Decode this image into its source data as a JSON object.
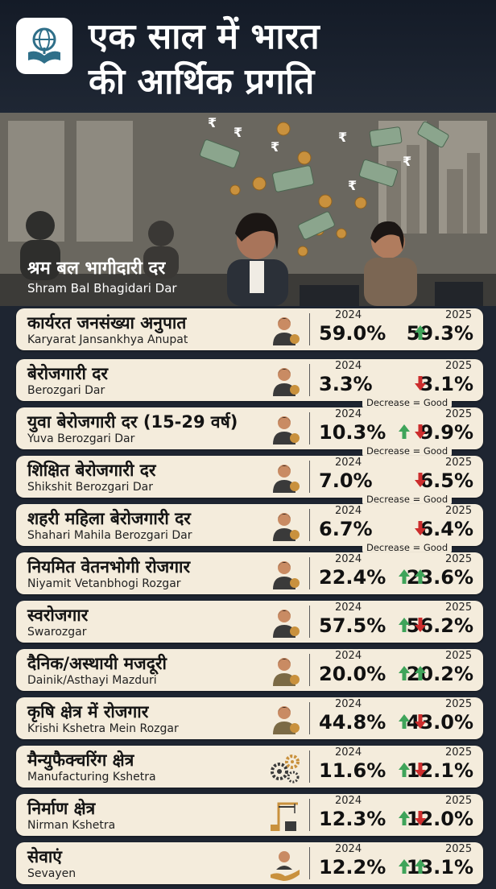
{
  "title": {
    "line1": "एक साल में भारत",
    "line2": "की आर्थिक प्रगति"
  },
  "intro": {
    "hi": "श्रम बल भागीदारी दर",
    "en": "Shram Bal Bhagidari Dar"
  },
  "year_labels": {
    "from": "2024",
    "to": "2025"
  },
  "decrease_note": "Decrease = Good",
  "colors": {
    "up": "#3fa45a",
    "down": "#cc2d2d",
    "card": "#f4ecdc",
    "background": "#1e2531"
  },
  "rows": [
    {
      "hi": "कार्यरत जनसंख्या अनुपात",
      "en": "Karyarat Jansankhya Anupat",
      "icon": "worker-desk-icon",
      "v2024": "59.0%",
      "v2025": "59.3%",
      "arrows": [
        "up"
      ],
      "note": false
    },
    {
      "hi": "बेरोजगारी दर",
      "en": "Berozgari Dar",
      "icon": "job-seeker-icon",
      "v2024": "3.3%",
      "v2025": "3.1%",
      "arrows": [
        "down"
      ],
      "note": true
    },
    {
      "hi": "युवा बेरोजगारी दर (15-29 वर्ष)",
      "en": "Yuva Berozgari Dar",
      "icon": "young-person-icon",
      "v2024": "10.3%",
      "v2025": "9.9%",
      "arrows": [
        "up",
        "down"
      ],
      "note": true
    },
    {
      "hi": "शिक्षित बेरोजगारी दर",
      "en": "Shikshit Berozgari Dar",
      "icon": "graduate-icon",
      "v2024": "7.0%",
      "v2025": "6.5%",
      "arrows": [
        "down"
      ],
      "note": true
    },
    {
      "hi": "शहरी महिला बेरोजगारी दर",
      "en": "Shahari Mahila Berozgari Dar",
      "icon": "urban-woman-icon",
      "v2024": "6.7%",
      "v2025": "6.4%",
      "arrows": [
        "down"
      ],
      "note": true
    },
    {
      "hi": "नियमित वेतनभोगी रोजगार",
      "en": "Niyamit Vetanbhogi Rozgar",
      "icon": "salaried-woman-icon",
      "v2024": "22.4%",
      "v2025": "23.6%",
      "arrows": [
        "up",
        "up"
      ],
      "note": false
    },
    {
      "hi": "स्वरोजगार",
      "en": "Swarozgar",
      "icon": "self-employed-icon",
      "v2024": "57.5%",
      "v2025": "56.2%",
      "arrows": [
        "up",
        "down"
      ],
      "note": false
    },
    {
      "hi": "दैनिक/अस्थायी मजदूरी",
      "en": "Dainik/Asthayi Mazduri",
      "icon": "daily-worker-icon",
      "v2024": "20.0%",
      "v2025": "20.2%",
      "arrows": [
        "up",
        "up"
      ],
      "note": false
    },
    {
      "hi": "कृषि क्षेत्र में रोजगार",
      "en": "Krishi Kshetra Mein Rozgar",
      "icon": "farmer-icon",
      "v2024": "44.8%",
      "v2025": "43.0%",
      "arrows": [
        "up",
        "down"
      ],
      "note": false
    },
    {
      "hi": "मैन्युफैक्चरिंग क्षेत्र",
      "en": "Manufacturing Kshetra",
      "icon": "gears-icon",
      "v2024": "11.6%",
      "v2025": "12.1%",
      "arrows": [
        "up",
        "down"
      ],
      "note": false
    },
    {
      "hi": "निर्माण क्षेत्र",
      "en": "Nirman Kshetra",
      "icon": "crane-icon",
      "v2024": "12.3%",
      "v2025": "12.0%",
      "arrows": [
        "up",
        "down"
      ],
      "note": false
    },
    {
      "hi": "सेवाएं",
      "en": "Sevayen",
      "icon": "service-hand-icon",
      "v2024": "12.2%",
      "v2025": "13.1%",
      "arrows": [
        "up",
        "up"
      ],
      "note": false
    }
  ]
}
